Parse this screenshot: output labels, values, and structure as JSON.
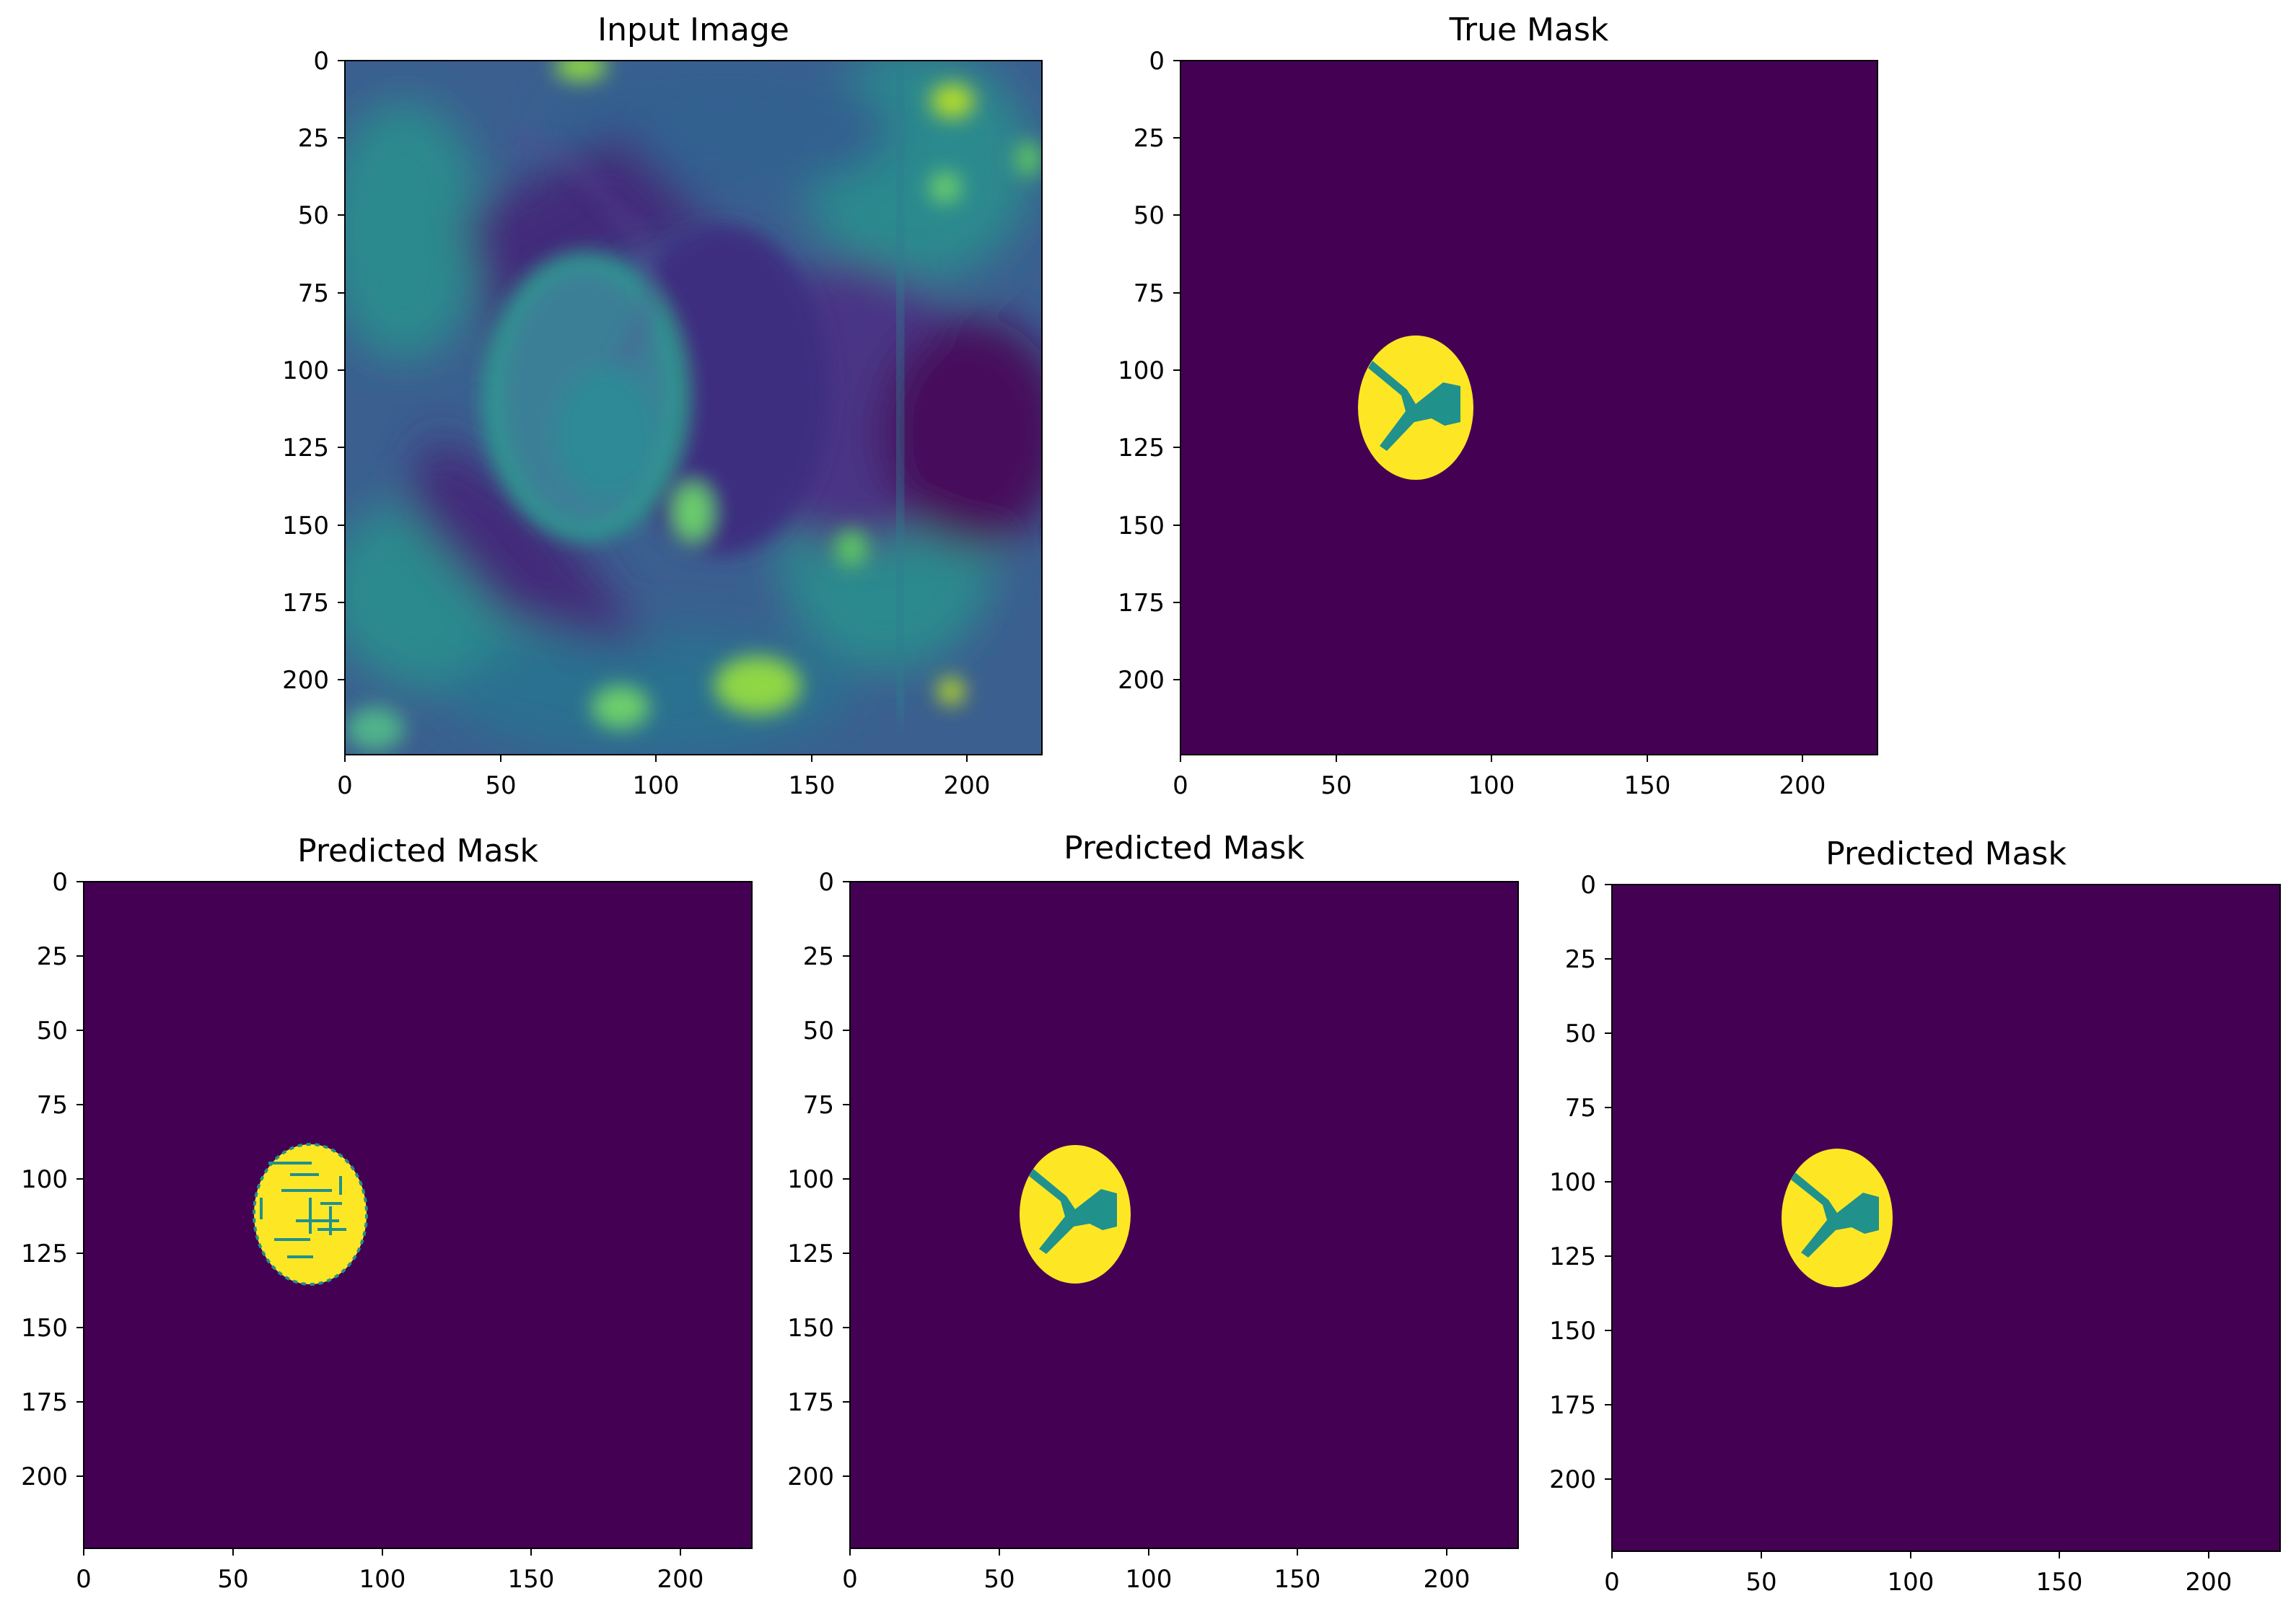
{
  "figure": {
    "panels": [
      {
        "title": "Input Image",
        "kind": "mri",
        "xticks": [
          "0",
          "50",
          "100",
          "150",
          "200"
        ],
        "yticks": [
          "0",
          "25",
          "50",
          "75",
          "100",
          "125",
          "150",
          "175",
          "200"
        ]
      },
      {
        "title": "True Mask",
        "kind": "mask",
        "xticks": [
          "0",
          "50",
          "100",
          "150",
          "200"
        ],
        "yticks": [
          "0",
          "25",
          "50",
          "75",
          "100",
          "125",
          "150",
          "175",
          "200"
        ]
      },
      {
        "title": "Predicted Mask",
        "kind": "mask-noisy",
        "xticks": [
          "0",
          "50",
          "100",
          "150",
          "200"
        ],
        "yticks": [
          "0",
          "25",
          "50",
          "75",
          "100",
          "125",
          "150",
          "175",
          "200"
        ]
      },
      {
        "title": "Predicted Mask",
        "kind": "mask",
        "xticks": [
          "0",
          "50",
          "100",
          "150",
          "200"
        ],
        "yticks": [
          "0",
          "25",
          "50",
          "75",
          "100",
          "125",
          "150",
          "175",
          "200"
        ]
      },
      {
        "title": "Predicted Mask",
        "kind": "mask",
        "xticks": [
          "0",
          "50",
          "100",
          "150",
          "200"
        ],
        "yticks": [
          "0",
          "25",
          "50",
          "75",
          "100",
          "125",
          "150",
          "175",
          "200"
        ]
      }
    ],
    "image_extent": [
      0,
      224
    ],
    "colors": {
      "background_purple": "#440154",
      "mask_yellow": "#fde725",
      "mask_teal": "#21918c",
      "mri_dark": "#3b2a78",
      "mri_mid": "#2a788e",
      "mri_light": "#22a884",
      "mri_bright": "#a0da39"
    }
  }
}
